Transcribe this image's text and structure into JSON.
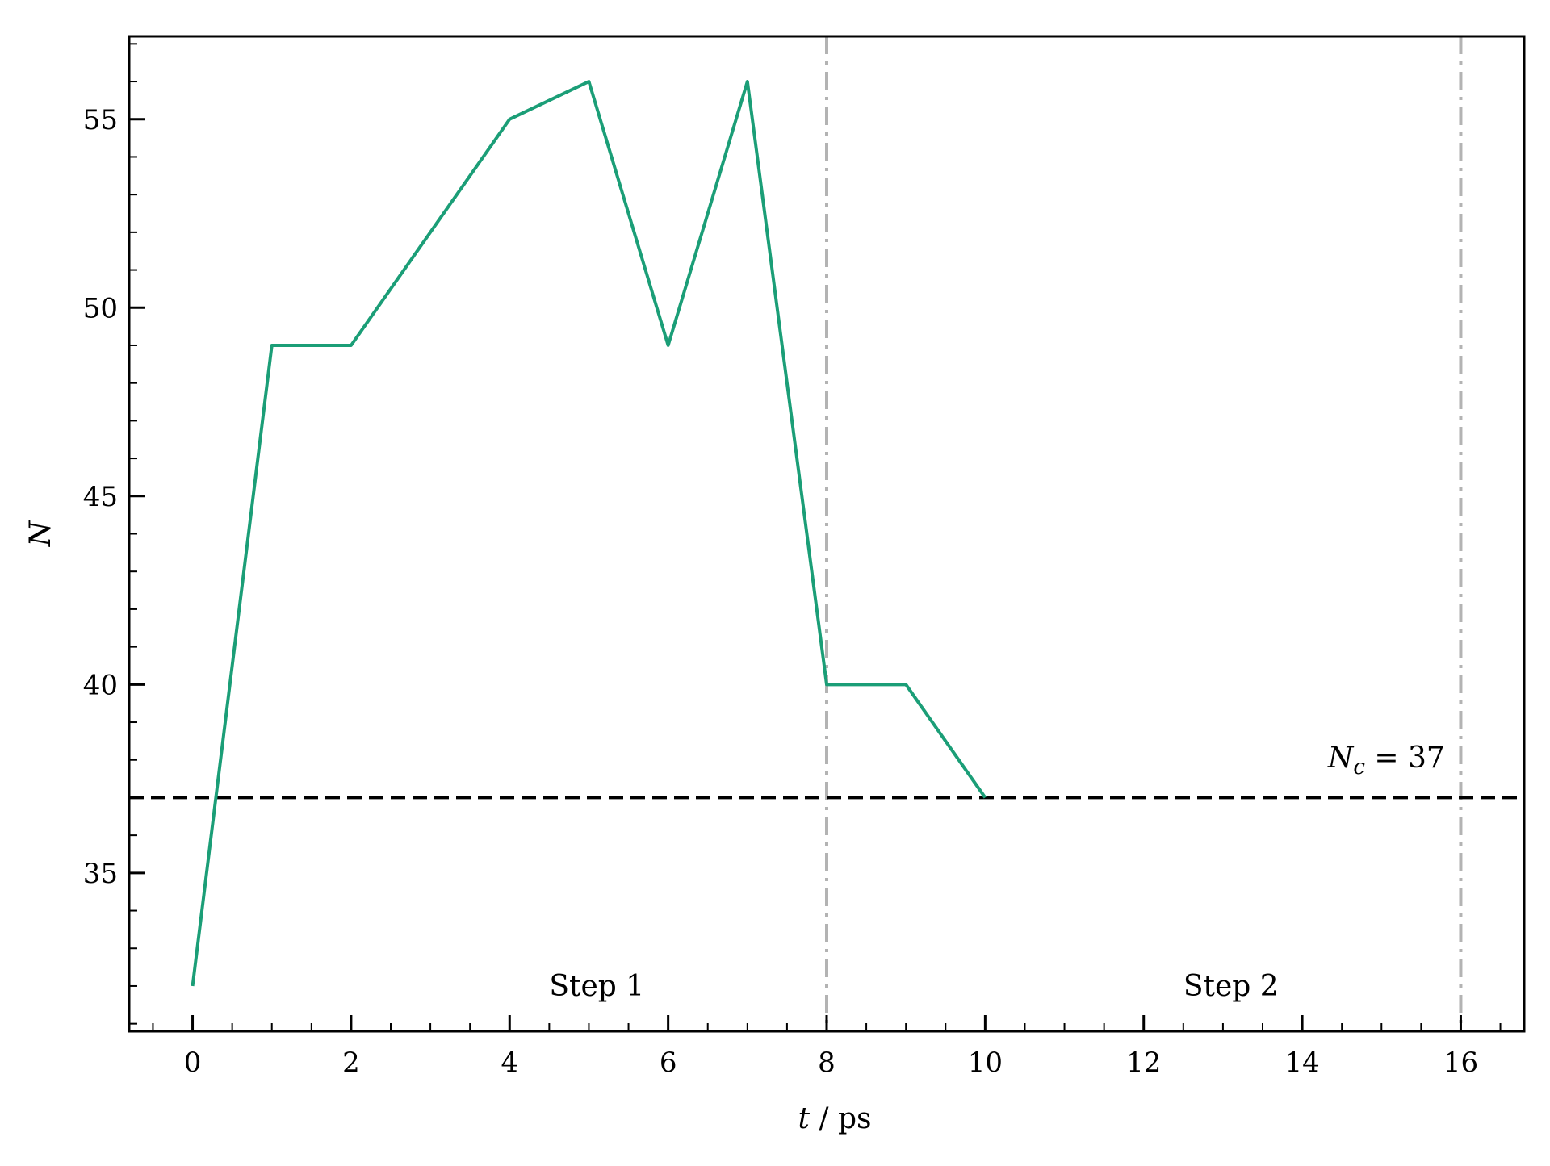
{
  "chart_data": {
    "type": "line",
    "xlabel": "t / ps",
    "ylabel": "N",
    "xlim": [
      -0.8,
      16.8
    ],
    "ylim": [
      30.8,
      57.2
    ],
    "x_ticks": [
      0,
      2,
      4,
      6,
      8,
      10,
      12,
      14,
      16
    ],
    "y_ticks": [
      35,
      40,
      45,
      50,
      55
    ],
    "x_minor_step": 0.5,
    "y_minor_step": 1,
    "grid": false,
    "legend": "none",
    "series": [
      {
        "color": "#1b9e77",
        "x": [
          0,
          1,
          2,
          3,
          4,
          5,
          6,
          7,
          8,
          9,
          10
        ],
        "y": [
          32,
          49,
          49,
          52,
          55,
          56,
          49,
          56,
          40,
          40,
          37
        ]
      }
    ],
    "hlines": [
      {
        "y": 37,
        "color": "#000000",
        "style": "dashed",
        "label": "N_c = 37"
      }
    ],
    "vlines": [
      {
        "x": 8,
        "color": "#b3b3b3",
        "style": "dashdot"
      },
      {
        "x": 16,
        "color": "#b3b3b3",
        "style": "dashdot"
      }
    ],
    "annotations": [
      {
        "text": "Step 1",
        "x": 5.1,
        "y": 32
      },
      {
        "text": "Step 2",
        "x": 13.1,
        "y": 32
      }
    ],
    "nc_label": {
      "main": "N",
      "sub": "c",
      "rest": " = 37",
      "x": 15.8,
      "y": 37.8
    }
  }
}
